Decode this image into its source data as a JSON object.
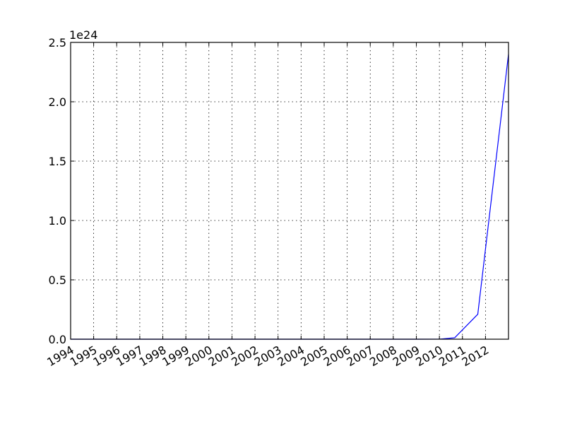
{
  "chart_data": {
    "type": "line",
    "title": "",
    "xlabel": "",
    "ylabel": "",
    "y_offset_label": "1e24",
    "x_tick_labels": [
      "1994",
      "1995",
      "1996",
      "1997",
      "1998",
      "1999",
      "2000",
      "2001",
      "2002",
      "2003",
      "2004",
      "2005",
      "2006",
      "2007",
      "2008",
      "2009",
      "2010",
      "2011",
      "2012"
    ],
    "y_tick_labels": [
      "0.0",
      "0.5",
      "1.0",
      "1.5",
      "2.0",
      "2.5"
    ],
    "y_tick_values": [
      0.0,
      0.5,
      1.0,
      1.5,
      2.0,
      2.5
    ],
    "xlim": [
      "1994-01-01",
      "2012-12-31"
    ],
    "ylim": [
      0.0,
      2.5
    ],
    "grid": true,
    "series": [
      {
        "color": "#0000ff",
        "points": [
          {
            "x": "1994-01-01",
            "y": 0.0
          },
          {
            "x": "2000-01-01",
            "y": 0.0
          },
          {
            "x": "2005-01-01",
            "y": 0.0
          },
          {
            "x": "2009-01-01",
            "y": 0.0
          },
          {
            "x": "2010-01-01",
            "y": 0.0005
          },
          {
            "x": "2010-09-01",
            "y": 0.012
          },
          {
            "x": "2011-09-01",
            "y": 0.21
          },
          {
            "x": "2012-12-31",
            "y": 2.4
          }
        ]
      }
    ]
  }
}
